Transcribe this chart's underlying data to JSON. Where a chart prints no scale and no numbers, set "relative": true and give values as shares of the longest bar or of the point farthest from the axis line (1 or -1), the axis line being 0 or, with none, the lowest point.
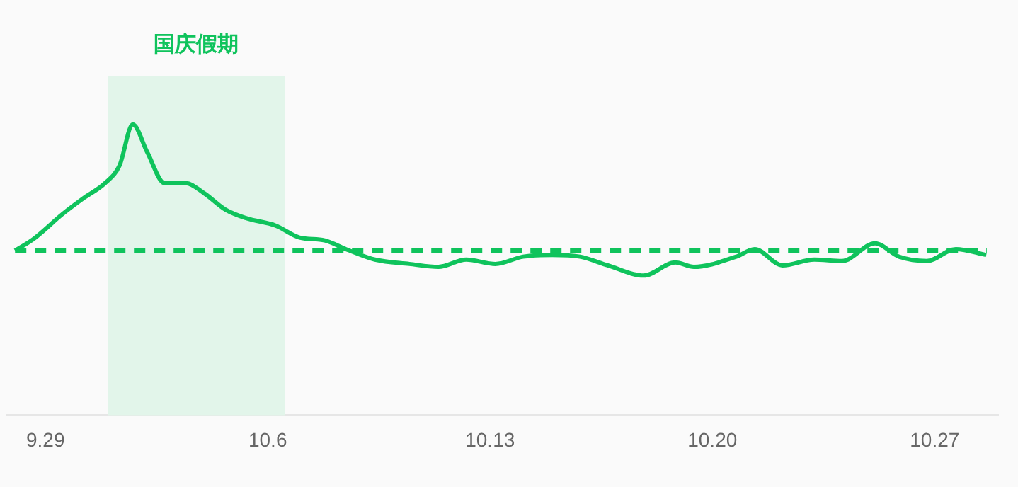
{
  "chart_data": {
    "type": "line",
    "relative": true,
    "x": [
      "--09-28T01:00",
      "--09-28T15:00",
      "--09-29T13:00",
      "--09-30T05:00",
      "--09-30T21:00",
      "--10-01T08:00",
      "--10-01T18:00",
      "--10-02T05:00",
      "--10-02T18:00",
      "--10-03T10:00",
      "--10-04T00:00",
      "--10-04T16:00",
      "--10-05T08:00",
      "--10-06T06:00",
      "--10-07T00:00",
      "--10-07T19:00",
      "--10-08T11:00",
      "--10-09T09:00",
      "--10-10T11:00",
      "--10-11T09:00",
      "--10-12T06:00",
      "--10-13T04:00",
      "--10-14T01:00",
      "--10-14T23:00",
      "--10-15T20:00",
      "--10-16T17:00",
      "--10-17T20:00",
      "--10-18T20:00",
      "--10-19T10:00",
      "--10-20T18:00",
      "--10-21T08:00",
      "--10-22T05:00",
      "--10-23T05:00",
      "--10-24T02:00",
      "--10-25T03:00",
      "--10-25T21:00",
      "--10-26T18:00",
      "--10-27T16:00",
      "--10-28T15:00"
    ],
    "series": [
      {
        "color": "#0fc35c",
        "values": [
          0.566,
          0.606,
          0.692,
          0.747,
          0.798,
          0.859,
          1.0,
          0.904,
          0.798,
          0.798,
          0.763,
          0.707,
          0.677,
          0.652,
          0.611,
          0.601,
          0.571,
          0.535,
          0.52,
          0.51,
          0.535,
          0.52,
          0.545,
          0.551,
          0.545,
          0.515,
          0.48,
          0.525,
          0.51,
          0.545,
          0.571,
          0.515,
          0.535,
          0.53,
          0.591,
          0.545,
          0.53,
          0.571,
          0.551
        ]
      }
    ],
    "xlim": [
      "--09-27T19:00",
      "--10-29"
    ],
    "xticks": [
      {
        "value": "--09-29",
        "label": "9.29"
      },
      {
        "value": "--10-06",
        "label": "10.6"
      },
      {
        "value": "--10-13",
        "label": "10.13"
      },
      {
        "value": "--10-20",
        "label": "10.20"
      },
      {
        "value": "--10-27",
        "label": "10.27"
      }
    ],
    "ref_lines": [
      {
        "axis": "y",
        "value": 0.566,
        "color": "#0fc35c",
        "line_style": "dashed"
      }
    ],
    "bands": [
      {
        "axis": "x",
        "from": "--09-30T23:00",
        "to": "--10-06T13:00",
        "label": "国庆假期",
        "color": "#e2f5ea"
      }
    ],
    "tick_labels": "x",
    "marker": "none",
    "line_style": "solid",
    "legend": false
  }
}
